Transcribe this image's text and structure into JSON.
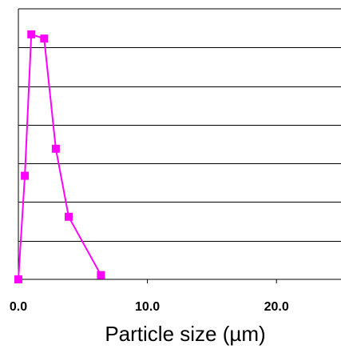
{
  "chart_data": {
    "type": "scatter",
    "title": "",
    "xlabel": "Particle size (µm)",
    "ylabel": "",
    "xlim": [
      0,
      25
    ],
    "ylim": [
      0,
      7
    ],
    "x_ticks": [
      "0.0",
      "10.0",
      "20.0"
    ],
    "y_gridlines": 7,
    "grid": true,
    "legend": "none",
    "series": [
      {
        "color": "#ff00ff",
        "marker": "square",
        "x": [
          0.0,
          0.5,
          1.0,
          2.0,
          2.9,
          3.9,
          6.4
        ],
        "y": [
          0.0,
          2.68,
          6.34,
          6.23,
          3.38,
          1.62,
          0.11
        ]
      }
    ]
  }
}
